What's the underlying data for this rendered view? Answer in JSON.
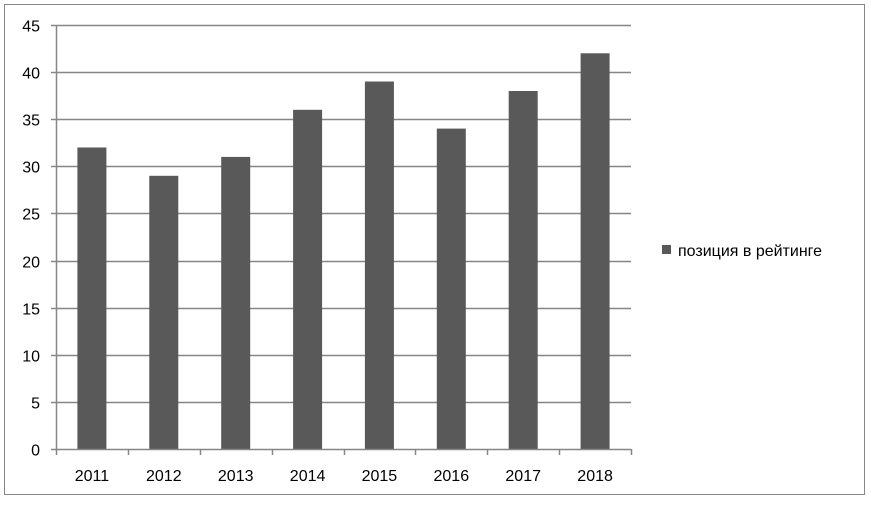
{
  "chart_data": {
    "type": "bar",
    "categories": [
      "2011",
      "2012",
      "2013",
      "2014",
      "2015",
      "2016",
      "2017",
      "2018"
    ],
    "series": [
      {
        "name": "позиция в рейтинге",
        "values": [
          32,
          29,
          31,
          36,
          39,
          34,
          38,
          42
        ],
        "color": "#595959"
      }
    ],
    "title": "",
    "xlabel": "",
    "ylabel": "",
    "ylim": [
      0,
      45
    ],
    "yticks": [
      "0",
      "5",
      "10",
      "15",
      "20",
      "25",
      "30",
      "35",
      "40",
      "45"
    ],
    "grid": true,
    "legend_position": "right"
  },
  "colors": {
    "bar": "#595959",
    "gridline": "#868686",
    "axis": "#868686",
    "border": "#868686"
  }
}
